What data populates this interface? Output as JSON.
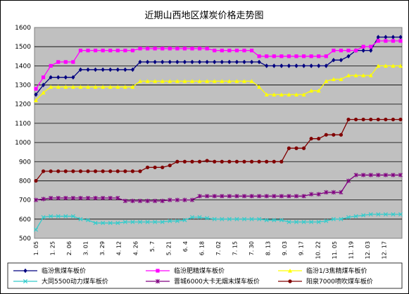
{
  "chart_data": {
    "type": "line",
    "title": "近期山西地区煤炭价格走势图",
    "xlabel": "",
    "ylabel": "",
    "ylim": [
      500,
      1600
    ],
    "yticks": [
      500,
      600,
      700,
      800,
      900,
      1000,
      1100,
      1200,
      1300,
      1400,
      1500,
      1600
    ],
    "grid": true,
    "legend_position": "bottom",
    "plot_background": "#c0c0c0",
    "x_tick_labels": [
      "1. 05",
      "1. 25",
      "2. 06",
      "3. 01",
      "3. 29",
      "4. 12",
      "4. 26",
      "5. 7",
      "5. 21",
      "6. 4",
      "6. 18",
      "7. 02",
      "7. 15",
      "7. 30",
      "8. 13",
      "9. 03",
      "9. 17",
      "10. 22",
      "11. 05",
      "11. 19",
      "12. 03",
      "12. 17"
    ],
    "series": [
      {
        "name": "临汾焦煤车板价",
        "color": "#000080",
        "marker": "diamond",
        "values": [
          1250,
          1300,
          1340,
          1340,
          1340,
          1340,
          1380,
          1380,
          1380,
          1380,
          1380,
          1380,
          1380,
          1380,
          1420,
          1420,
          1420,
          1420,
          1420,
          1420,
          1420,
          1420,
          1420,
          1420,
          1420,
          1420,
          1420,
          1420,
          1420,
          1420,
          1420,
          1400,
          1400,
          1400,
          1400,
          1400,
          1400,
          1400,
          1400,
          1400,
          1430,
          1430,
          1450,
          1480,
          1480,
          1480,
          1550,
          1550,
          1550,
          1550
        ]
      },
      {
        "name": "临汾肥精煤车板价",
        "color": "#ff00ff",
        "marker": "square",
        "values": [
          1280,
          1340,
          1400,
          1420,
          1420,
          1420,
          1480,
          1480,
          1480,
          1480,
          1480,
          1480,
          1480,
          1480,
          1490,
          1490,
          1490,
          1490,
          1490,
          1490,
          1490,
          1490,
          1490,
          1490,
          1480,
          1480,
          1480,
          1480,
          1480,
          1480,
          1450,
          1450,
          1450,
          1450,
          1450,
          1450,
          1450,
          1450,
          1450,
          1450,
          1480,
          1480,
          1480,
          1480,
          1500,
          1500,
          1530,
          1530,
          1530,
          1530
        ]
      },
      {
        "name": "临汾1/3焦精煤车板价",
        "color": "#ffff00",
        "marker": "triangle",
        "values": [
          1220,
          1260,
          1290,
          1290,
          1290,
          1290,
          1290,
          1290,
          1290,
          1290,
          1290,
          1290,
          1290,
          1290,
          1320,
          1320,
          1320,
          1320,
          1320,
          1320,
          1320,
          1320,
          1320,
          1320,
          1320,
          1320,
          1320,
          1320,
          1320,
          1320,
          1290,
          1250,
          1250,
          1250,
          1250,
          1250,
          1250,
          1270,
          1270,
          1320,
          1330,
          1330,
          1350,
          1350,
          1350,
          1350,
          1400,
          1400,
          1400,
          1400
        ]
      },
      {
        "name": "大同5500动力煤车板价",
        "color": "#33cccc",
        "marker": "x",
        "values": [
          545,
          610,
          615,
          615,
          615,
          615,
          600,
          595,
          580,
          580,
          580,
          580,
          585,
          585,
          585,
          585,
          585,
          585,
          590,
          590,
          595,
          610,
          610,
          605,
          600,
          600,
          600,
          600,
          600,
          600,
          600,
          595,
          595,
          595,
          585,
          585,
          585,
          585,
          585,
          590,
          600,
          600,
          610,
          615,
          620,
          625,
          625,
          625,
          625,
          625
        ]
      },
      {
        "name": "晋城6000大卡无烟末煤车板价",
        "color": "#800080",
        "marker": "star",
        "values": [
          700,
          705,
          710,
          710,
          710,
          710,
          710,
          710,
          710,
          710,
          710,
          710,
          695,
          695,
          695,
          695,
          695,
          695,
          700,
          700,
          700,
          700,
          720,
          720,
          720,
          720,
          720,
          720,
          720,
          720,
          720,
          720,
          720,
          720,
          720,
          720,
          720,
          730,
          730,
          740,
          740,
          740,
          800,
          830,
          830,
          830,
          830,
          830,
          830,
          830
        ]
      },
      {
        "name": "阳泉7000喷吹煤车板价",
        "color": "#800000",
        "marker": "circle",
        "values": [
          800,
          850,
          850,
          850,
          850,
          850,
          850,
          850,
          850,
          850,
          850,
          850,
          850,
          850,
          850,
          870,
          870,
          870,
          880,
          900,
          900,
          900,
          900,
          905,
          900,
          900,
          900,
          900,
          900,
          900,
          900,
          900,
          900,
          900,
          970,
          970,
          970,
          1020,
          1020,
          1040,
          1040,
          1040,
          1120,
          1120,
          1120,
          1120,
          1120,
          1120,
          1120,
          1120
        ]
      }
    ]
  }
}
